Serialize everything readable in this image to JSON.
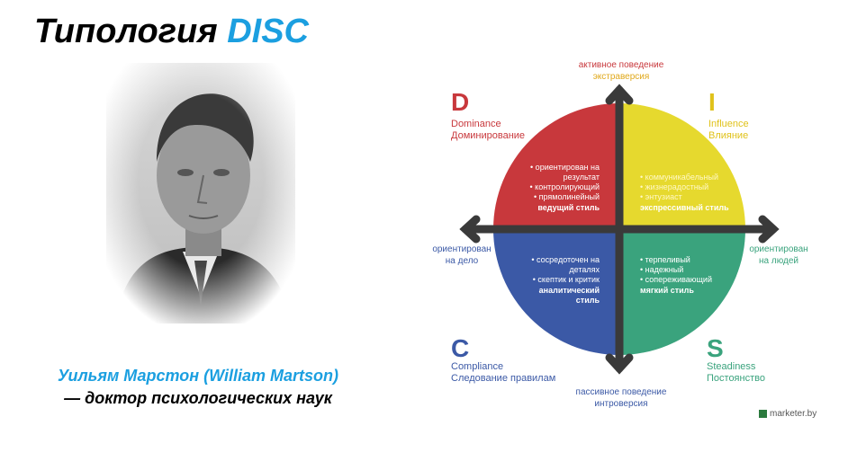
{
  "title": {
    "prefix": "Типология ",
    "accent": "DISC"
  },
  "caption": {
    "name": "Уильям Марстон (William Martson)",
    "role": "— доктор психологических наук"
  },
  "axes": {
    "top": [
      "активное поведение",
      "экстраверсия"
    ],
    "bottom": [
      "пассивное поведение",
      "интроверсия"
    ],
    "left": [
      "ориентирован",
      "на дело"
    ],
    "right": [
      "ориентирован",
      "на людей"
    ]
  },
  "quadrants": {
    "D": {
      "letter": "D",
      "name_en": "Dominance",
      "name_ru": "Доминирование",
      "color": "#c8383c",
      "traits": [
        "• ориентирован на",
        "результат",
        "• контролирующий",
        "• прямолинейный"
      ],
      "style": "ведущий стиль"
    },
    "I": {
      "letter": "I",
      "name_en": "Influence",
      "name_ru": "Влияние",
      "color": "#e6d92e",
      "traits": [
        "• коммуникабельный",
        "• жизнерадостный",
        "• энтузиаст"
      ],
      "style": "экспрессивный стиль"
    },
    "C": {
      "letter": "C",
      "name_en": "Compliance",
      "name_ru": "Следование правилам",
      "color": "#3b59a6",
      "traits": [
        "• сосредоточен на",
        "деталях",
        "• скептик и критик"
      ],
      "style": [
        "аналитический",
        "стиль"
      ]
    },
    "S": {
      "letter": "S",
      "name_en": "Steadiness",
      "name_ru": "Постоянство",
      "color": "#3aa37d",
      "traits": [
        "• терпеливый",
        "• надежный",
        "• сопереживающий"
      ],
      "style": "мягкий стиль"
    }
  },
  "brand": "marketer.by",
  "colors": {
    "axis": "#3a3a3a",
    "top_label": "#c8383c",
    "top_label2": "#e0a81a",
    "left_label": "#3b59a6",
    "right_label": "#3aa37d"
  }
}
